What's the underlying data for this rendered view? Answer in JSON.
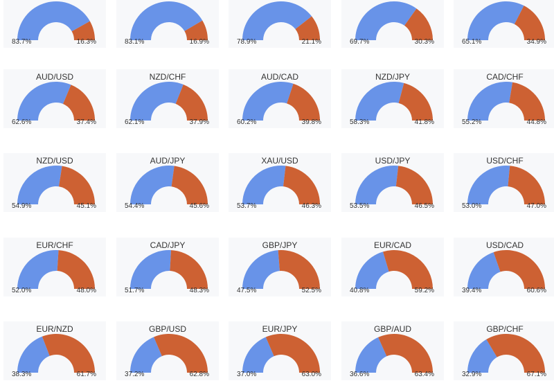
{
  "colors": {
    "long": "#6893e8",
    "short": "#cd6133"
  },
  "chart_data": {
    "type": "pie",
    "subtype": "semi-donut",
    "charts": [
      {
        "title": "",
        "values": [
          83.7,
          16.3
        ],
        "labels": [
          "83.7%",
          "16.3%"
        ]
      },
      {
        "title": "",
        "values": [
          83.1,
          16.9
        ],
        "labels": [
          "83.1%",
          "16.9%"
        ]
      },
      {
        "title": "",
        "values": [
          78.9,
          21.1
        ],
        "labels": [
          "78.9%",
          "21.1%"
        ]
      },
      {
        "title": "",
        "values": [
          69.7,
          30.3
        ],
        "labels": [
          "69.7%",
          "30.3%"
        ]
      },
      {
        "title": "",
        "values": [
          65.1,
          34.9
        ],
        "labels": [
          "65.1%",
          "34.9%"
        ]
      },
      {
        "title": "AUD/USD",
        "values": [
          62.6,
          37.4
        ],
        "labels": [
          "62.6%",
          "37.4%"
        ]
      },
      {
        "title": "NZD/CHF",
        "values": [
          62.1,
          37.9
        ],
        "labels": [
          "62.1%",
          "37.9%"
        ]
      },
      {
        "title": "AUD/CAD",
        "values": [
          60.2,
          39.8
        ],
        "labels": [
          "60.2%",
          "39.8%"
        ]
      },
      {
        "title": "NZD/JPY",
        "values": [
          58.3,
          41.8
        ],
        "labels": [
          "58.3%",
          "41.8%"
        ]
      },
      {
        "title": "CAD/CHF",
        "values": [
          55.2,
          44.8
        ],
        "labels": [
          "55.2%",
          "44.8%"
        ]
      },
      {
        "title": "NZD/USD",
        "values": [
          54.9,
          45.1
        ],
        "labels": [
          "54.9%",
          "45.1%"
        ]
      },
      {
        "title": "AUD/JPY",
        "values": [
          54.4,
          45.6
        ],
        "labels": [
          "54.4%",
          "45.6%"
        ]
      },
      {
        "title": "XAU/USD",
        "values": [
          53.7,
          46.3
        ],
        "labels": [
          "53.7%",
          "46.3%"
        ]
      },
      {
        "title": "USD/JPY",
        "values": [
          53.5,
          46.5
        ],
        "labels": [
          "53.5%",
          "46.5%"
        ]
      },
      {
        "title": "USD/CHF",
        "values": [
          53.0,
          47.0
        ],
        "labels": [
          "53.0%",
          "47.0%"
        ]
      },
      {
        "title": "EUR/CHF",
        "values": [
          52.0,
          48.0
        ],
        "labels": [
          "52.0%",
          "48.0%"
        ]
      },
      {
        "title": "CAD/JPY",
        "values": [
          51.7,
          48.3
        ],
        "labels": [
          "51.7%",
          "48.3%"
        ]
      },
      {
        "title": "GBP/JPY",
        "values": [
          47.5,
          52.5
        ],
        "labels": [
          "47.5%",
          "52.5%"
        ]
      },
      {
        "title": "EUR/CAD",
        "values": [
          40.8,
          59.2
        ],
        "labels": [
          "40.8%",
          "59.2%"
        ]
      },
      {
        "title": "USD/CAD",
        "values": [
          39.4,
          60.6
        ],
        "labels": [
          "39.4%",
          "60.6%"
        ]
      },
      {
        "title": "EUR/NZD",
        "values": [
          38.3,
          61.7
        ],
        "labels": [
          "38.3%",
          "61.7%"
        ]
      },
      {
        "title": "GBP/USD",
        "values": [
          37.2,
          62.8
        ],
        "labels": [
          "37.2%",
          "62.8%"
        ]
      },
      {
        "title": "EUR/JPY",
        "values": [
          37.0,
          63.0
        ],
        "labels": [
          "37.0%",
          "63.0%"
        ]
      },
      {
        "title": "GBP/AUD",
        "values": [
          36.6,
          63.4
        ],
        "labels": [
          "36.6%",
          "63.4%"
        ]
      },
      {
        "title": "GBP/CHF",
        "values": [
          32.9,
          67.1
        ],
        "labels": [
          "32.9%",
          "67.1%"
        ]
      }
    ]
  }
}
